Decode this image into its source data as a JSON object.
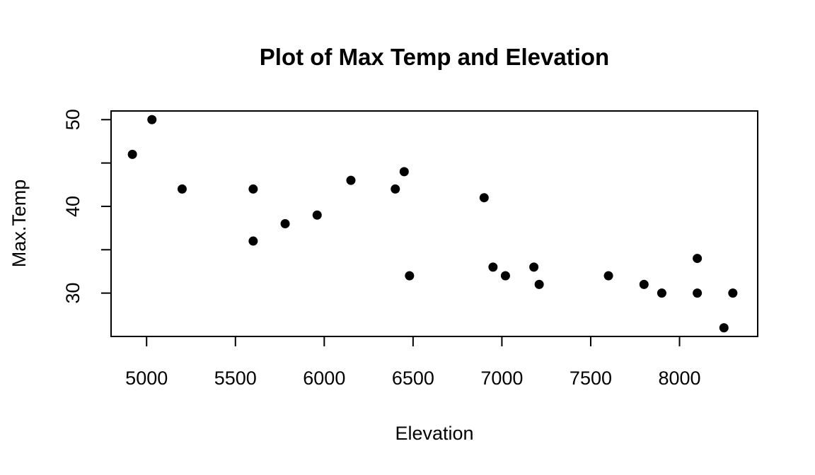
{
  "chart_data": {
    "type": "scatter",
    "title": "Plot of Max Temp and Elevation",
    "xlabel": "Elevation",
    "ylabel": "Max.Temp",
    "xlim": [
      4800,
      8440
    ],
    "ylim": [
      25,
      51
    ],
    "x_ticks": [
      5000,
      5500,
      6000,
      6500,
      7000,
      7500,
      8000
    ],
    "y_ticks": [
      30,
      40,
      50
    ],
    "y_minor_ticks": [
      35,
      45
    ],
    "grid": false,
    "legend": "none",
    "marker_color": "#000000",
    "points": [
      {
        "x": 4920,
        "y": 46
      },
      {
        "x": 5030,
        "y": 50
      },
      {
        "x": 5200,
        "y": 42
      },
      {
        "x": 5600,
        "y": 42
      },
      {
        "x": 5600,
        "y": 36
      },
      {
        "x": 5780,
        "y": 38
      },
      {
        "x": 5960,
        "y": 39
      },
      {
        "x": 6150,
        "y": 43
      },
      {
        "x": 6400,
        "y": 42
      },
      {
        "x": 6450,
        "y": 44
      },
      {
        "x": 6480,
        "y": 32
      },
      {
        "x": 6900,
        "y": 41
      },
      {
        "x": 6950,
        "y": 33
      },
      {
        "x": 7020,
        "y": 32
      },
      {
        "x": 7180,
        "y": 33
      },
      {
        "x": 7210,
        "y": 31
      },
      {
        "x": 7600,
        "y": 32
      },
      {
        "x": 7800,
        "y": 31
      },
      {
        "x": 7900,
        "y": 30
      },
      {
        "x": 8100,
        "y": 34
      },
      {
        "x": 8100,
        "y": 30
      },
      {
        "x": 8250,
        "y": 26
      },
      {
        "x": 8300,
        "y": 30
      }
    ]
  }
}
